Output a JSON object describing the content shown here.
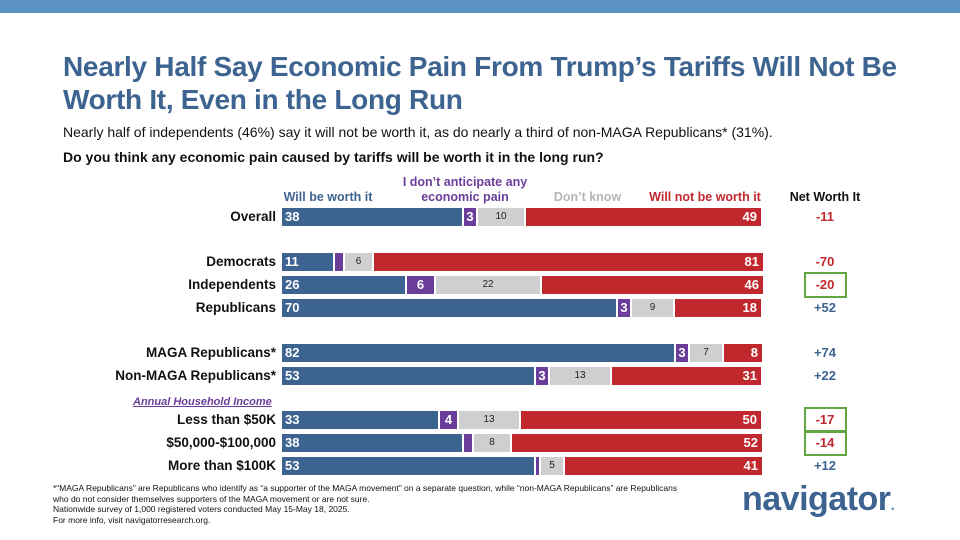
{
  "title": "Nearly Half Say Economic Pain From Trump’s Tariffs Will Not Be Worth It, Even in the Long Run",
  "subtitle": "Nearly half of independents (46%) say it will not be worth it, as do nearly a third of non-MAGA Republicans* (31%).",
  "question": "Do you think any economic pain caused by tariffs will be worth it in the long run?",
  "colors": {
    "will": "#3d6390",
    "none": "#6a3d9a",
    "dk": "#cfcfcf",
    "not": "#c0282d",
    "highlight": "#62a744"
  },
  "chart_data": {
    "type": "bar",
    "orientation": "horizontal-stacked",
    "series": [
      {
        "key": "will",
        "name": "Will be worth it"
      },
      {
        "key": "none",
        "name": "I don’t anticipate any economic pain"
      },
      {
        "key": "dk",
        "name": "Don’t know"
      },
      {
        "key": "not",
        "name": "Will not be worth it"
      }
    ],
    "net_header": "Net Worth It",
    "section_label": "Annual Household Income",
    "rows": [
      {
        "label": "Overall",
        "will": 38,
        "none": 3,
        "dk": 10,
        "not": 49,
        "net": "-11",
        "highlight": false
      },
      {
        "label": "Democrats",
        "will": 11,
        "none": 2,
        "dk": 6,
        "not": 81,
        "net": "-70",
        "highlight": false
      },
      {
        "label": "Independents",
        "will": 26,
        "none": 6,
        "dk": 22,
        "not": 46,
        "net": "-20",
        "highlight": true
      },
      {
        "label": "Republicans",
        "will": 70,
        "none": 3,
        "dk": 9,
        "not": 18,
        "net": "+52",
        "highlight": false
      },
      {
        "label": "MAGA Republicans*",
        "will": 82,
        "none": 3,
        "dk": 7,
        "not": 8,
        "net": "+74",
        "highlight": false
      },
      {
        "label": "Non-MAGA Republicans*",
        "will": 53,
        "none": 3,
        "dk": 13,
        "not": 31,
        "net": "+22",
        "highlight": false
      },
      {
        "label": "Less than $50K",
        "will": 33,
        "none": 4,
        "dk": 13,
        "not": 50,
        "net": "-17",
        "highlight": true
      },
      {
        "label": "$50,000-$100,000",
        "will": 38,
        "none": 2,
        "dk": 8,
        "not": 52,
        "net": "-14",
        "highlight": true
      },
      {
        "label": "More than $100K",
        "will": 53,
        "none": 1,
        "dk": 5,
        "not": 41,
        "net": "+12",
        "highlight": false
      }
    ]
  },
  "footnote": {
    "line1": "*“MAGA Republicans” are Republicans who identify as “a supporter of the MAGA movement” on a separate question, while “non-MAGA Republicans” are Republicans who do not consider themselves supporters of the MAGA movement or are not sure.",
    "line2": "Nationwide survey of 1,000 registered voters conducted May 15-May 18, 2025.",
    "line3": "For more info, visit navigatorresearch.org."
  },
  "logo": {
    "text": "navigator",
    "dot": "."
  }
}
